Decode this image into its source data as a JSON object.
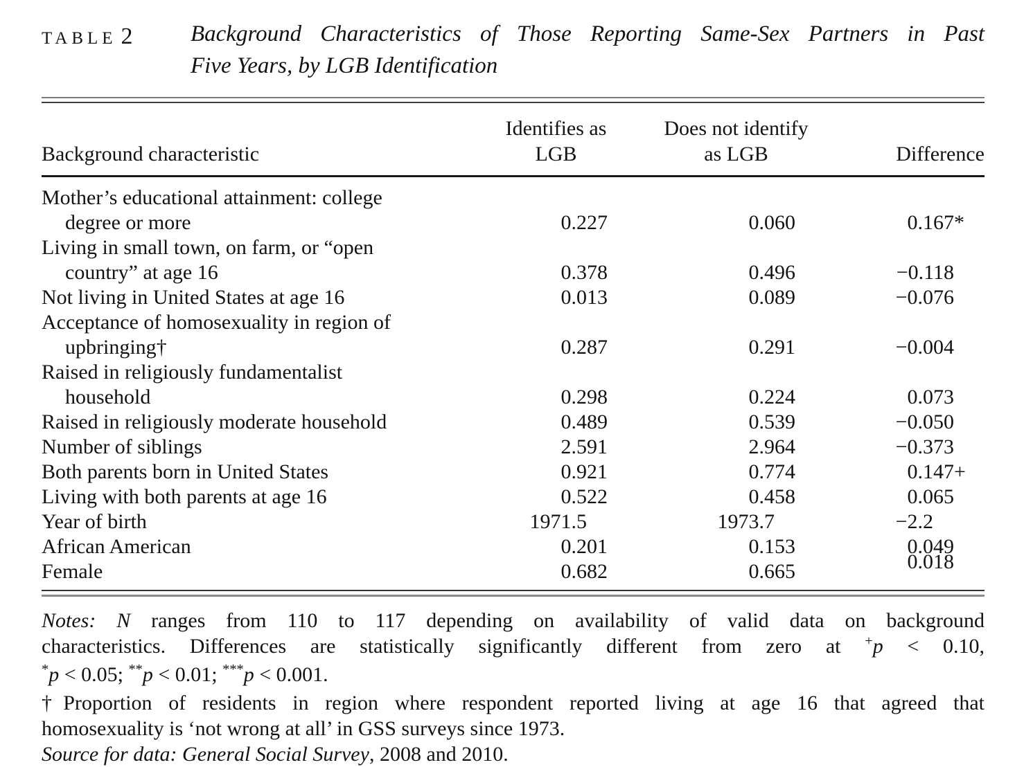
{
  "caption": {
    "label_word": "TABLE",
    "label_number": "2",
    "title_line1": "Background Characteristics of Those Reporting Same-Sex Partners in Past",
    "title_line2": "Five Years, by LGB Identification"
  },
  "table": {
    "header": {
      "col1": "Background characteristic",
      "col2_line1": "Identifies as",
      "col2_line2": "LGB",
      "col3_line1": "Does not identify",
      "col3_line2": "as LGB",
      "col4": "Difference"
    },
    "rows": [
      {
        "label_lines": [
          "Mother’s educational attainment: college",
          "degree or more"
        ],
        "lgb": "0.227",
        "not_lgb": "0.060",
        "diff": "0.167",
        "diff_marker": "*",
        "diff_raised": false
      },
      {
        "label_lines": [
          "Living in small town, on farm, or “open",
          "country” at age 16"
        ],
        "lgb": "0.378",
        "not_lgb": "0.496",
        "diff": "−0.118",
        "diff_marker": "",
        "diff_raised": false
      },
      {
        "label_lines": [
          "Not living in United States at age 16"
        ],
        "lgb": "0.013",
        "not_lgb": "0.089",
        "diff": "−0.076",
        "diff_marker": "",
        "diff_raised": false
      },
      {
        "label_lines": [
          "Acceptance of homosexuality in region of",
          "upbringing†"
        ],
        "lgb": "0.287",
        "not_lgb": "0.291",
        "diff": "−0.004",
        "diff_marker": "",
        "diff_raised": false
      },
      {
        "label_lines": [
          "Raised in religiously fundamentalist",
          "household"
        ],
        "lgb": "0.298",
        "not_lgb": "0.224",
        "diff": "0.073",
        "diff_marker": "",
        "diff_raised": false
      },
      {
        "label_lines": [
          "Raised in religiously moderate household"
        ],
        "lgb": "0.489",
        "not_lgb": "0.539",
        "diff": "−0.050",
        "diff_marker": "",
        "diff_raised": false
      },
      {
        "label_lines": [
          "Number of siblings"
        ],
        "lgb": "2.591",
        "not_lgb": "2.964",
        "diff": "−0.373",
        "diff_marker": "",
        "diff_raised": false
      },
      {
        "label_lines": [
          "Both parents born in United States"
        ],
        "lgb": "0.921",
        "not_lgb": "0.774",
        "diff": "0.147",
        "diff_marker": "+",
        "diff_raised": false
      },
      {
        "label_lines": [
          "Living with both parents at age 16"
        ],
        "lgb": "0.522",
        "not_lgb": "0.458",
        "diff": "0.065",
        "diff_marker": "",
        "diff_raised": false
      },
      {
        "label_lines": [
          "Year of birth"
        ],
        "lgb": "1971.5",
        "not_lgb": "1973.7",
        "diff": "−2.2",
        "diff_marker": "",
        "diff_raised": false
      },
      {
        "label_lines": [
          "African American"
        ],
        "lgb": "0.201",
        "not_lgb": "0.153",
        "diff": "0.049",
        "diff_marker": "",
        "diff_raised": false
      },
      {
        "label_lines": [
          "Female"
        ],
        "lgb": "0.682",
        "not_lgb": "0.665",
        "diff": "0.018",
        "diff_marker": "",
        "diff_raised": true
      }
    ]
  },
  "notes": {
    "lines": [
      {
        "justify": true,
        "segments": [
          {
            "text": "Notes: ",
            "style": "italic"
          },
          {
            "text": "N",
            "style": "italic"
          },
          {
            "text": " ranges from 110 to 117 depending on availability of valid data on background",
            "style": "normal"
          }
        ]
      },
      {
        "justify": true,
        "segments": [
          {
            "text": "characteristics. Differences are statistically significantly different from zero at ",
            "style": "normal"
          },
          {
            "text": "+",
            "style": "sup"
          },
          {
            "text": "p",
            "style": "italic"
          },
          {
            "text": " < 0.10,",
            "style": "normal"
          }
        ]
      },
      {
        "justify": false,
        "segments": [
          {
            "text": "*",
            "style": "sup"
          },
          {
            "text": "p",
            "style": "italic"
          },
          {
            "text": " < 0.05; ",
            "style": "normal"
          },
          {
            "text": "**",
            "style": "sup"
          },
          {
            "text": "p",
            "style": "italic"
          },
          {
            "text": " < 0.01; ",
            "style": "normal"
          },
          {
            "text": "***",
            "style": "sup"
          },
          {
            "text": "p",
            "style": "italic"
          },
          {
            "text": " < 0.001.",
            "style": "normal"
          }
        ]
      },
      {
        "justify": true,
        "segments": [
          {
            "text": "†Proportion of residents in region where respondent reported living at age 16 that agreed that",
            "style": "normal"
          }
        ]
      },
      {
        "justify": false,
        "segments": [
          {
            "text": "homosexuality is ‘not wrong at all’ in GSS surveys since 1973.",
            "style": "normal"
          }
        ]
      },
      {
        "justify": false,
        "segments": [
          {
            "text": "Source for data: General Social Survey",
            "style": "italic"
          },
          {
            "text": ", 2008 and 2010.",
            "style": "normal"
          }
        ]
      }
    ]
  },
  "colors": {
    "text": "#121212",
    "background": "#ffffff",
    "rule": "#3a3a3a"
  }
}
